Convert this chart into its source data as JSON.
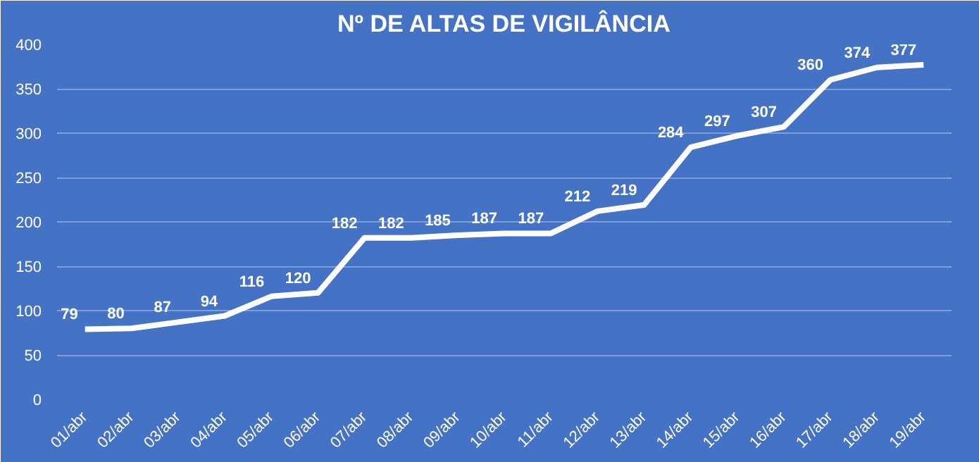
{
  "chart_data": {
    "type": "line",
    "title": "Nº DE ALTAS DE VIGILÂNCIA",
    "categories": [
      "01/abr",
      "02/abr",
      "03/abr",
      "04/abr",
      "05/abr",
      "06/abr",
      "07/abr",
      "08/abr",
      "09/abr",
      "10/abr",
      "11/abr",
      "12/abr",
      "13/abr",
      "14/abr",
      "15/abr",
      "16/abr",
      "17/abr",
      "18/abr",
      "19/abr"
    ],
    "values": [
      79,
      80,
      87,
      94,
      116,
      120,
      182,
      182,
      185,
      187,
      187,
      212,
      219,
      284,
      297,
      307,
      360,
      374,
      377
    ],
    "color": "#ffffff",
    "ylim": [
      0,
      400
    ],
    "yticks": [
      0,
      50,
      100,
      150,
      200,
      250,
      300,
      350,
      400
    ],
    "grid": "y",
    "data_labels": true,
    "marker": "none",
    "line_style": "solid"
  }
}
